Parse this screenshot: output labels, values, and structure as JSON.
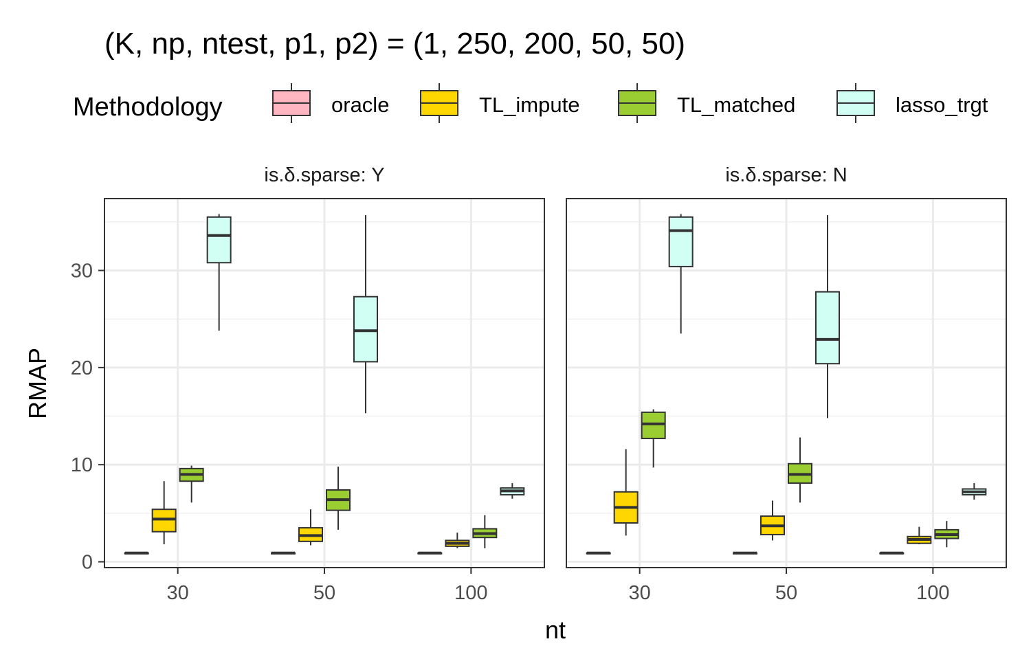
{
  "chart_data": {
    "type": "boxplot",
    "title": "(K, np, ntest, p1, p2) = (1, 250, 200, 50, 50)",
    "xlabel": "nt",
    "ylabel": "RMAP",
    "ylim": [
      -0.6,
      37.4
    ],
    "y_ticks": [
      0,
      10,
      20,
      30
    ],
    "categories": [
      "30",
      "50",
      "100"
    ],
    "legend": {
      "title": "Methodology",
      "position": "top",
      "entries": [
        {
          "name": "oracle",
          "color": "#FFB6C1"
        },
        {
          "name": "TL_impute",
          "color": "#FFD700"
        },
        {
          "name": "TL_matched",
          "color": "#9ACD32"
        },
        {
          "name": "lasso_trgt",
          "color": "#D2FFF4"
        }
      ]
    },
    "grid": true,
    "panels": [
      {
        "label": "is.δ.sparse: Y",
        "groups": [
          {
            "nt": "30",
            "boxes": [
              {
                "method": "oracle",
                "whisker_low": 0.9,
                "q1": 0.9,
                "median": 0.9,
                "q3": 0.9,
                "whisker_high": 0.9
              },
              {
                "method": "TL_impute",
                "whisker_low": 1.8,
                "q1": 3.1,
                "median": 4.4,
                "q3": 5.4,
                "whisker_high": 8.3
              },
              {
                "method": "TL_matched",
                "whisker_low": 6.1,
                "q1": 8.3,
                "median": 9.0,
                "q3": 9.6,
                "whisker_high": 9.9
              },
              {
                "method": "lasso_trgt",
                "whisker_low": 23.8,
                "q1": 30.8,
                "median": 33.6,
                "q3": 35.5,
                "whisker_high": 35.8
              }
            ]
          },
          {
            "nt": "50",
            "boxes": [
              {
                "method": "oracle",
                "whisker_low": 0.9,
                "q1": 0.9,
                "median": 0.9,
                "q3": 0.9,
                "whisker_high": 0.9
              },
              {
                "method": "TL_impute",
                "whisker_low": 1.7,
                "q1": 2.1,
                "median": 2.7,
                "q3": 3.5,
                "whisker_high": 5.4
              },
              {
                "method": "TL_matched",
                "whisker_low": 3.3,
                "q1": 5.3,
                "median": 6.4,
                "q3": 7.4,
                "whisker_high": 9.8
              },
              {
                "method": "lasso_trgt",
                "whisker_low": 15.3,
                "q1": 20.6,
                "median": 23.8,
                "q3": 27.3,
                "whisker_high": 35.7
              }
            ]
          },
          {
            "nt": "100",
            "boxes": [
              {
                "method": "oracle",
                "whisker_low": 0.9,
                "q1": 0.9,
                "median": 0.9,
                "q3": 0.9,
                "whisker_high": 0.9
              },
              {
                "method": "TL_impute",
                "whisker_low": 1.4,
                "q1": 1.6,
                "median": 1.9,
                "q3": 2.2,
                "whisker_high": 3.0
              },
              {
                "method": "TL_matched",
                "whisker_low": 1.4,
                "q1": 2.5,
                "median": 2.9,
                "q3": 3.4,
                "whisker_high": 4.8
              },
              {
                "method": "lasso_trgt",
                "whisker_low": 6.5,
                "q1": 6.9,
                "median": 7.3,
                "q3": 7.6,
                "whisker_high": 8.1
              }
            ]
          }
        ]
      },
      {
        "label": "is.δ.sparse: N",
        "groups": [
          {
            "nt": "30",
            "boxes": [
              {
                "method": "oracle",
                "whisker_low": 0.9,
                "q1": 0.9,
                "median": 0.9,
                "q3": 0.9,
                "whisker_high": 0.9
              },
              {
                "method": "TL_impute",
                "whisker_low": 2.7,
                "q1": 4.0,
                "median": 5.6,
                "q3": 7.2,
                "whisker_high": 11.6
              },
              {
                "method": "TL_matched",
                "whisker_low": 9.7,
                "q1": 12.7,
                "median": 14.2,
                "q3": 15.4,
                "whisker_high": 15.7
              },
              {
                "method": "lasso_trgt",
                "whisker_low": 23.5,
                "q1": 30.4,
                "median": 34.1,
                "q3": 35.5,
                "whisker_high": 35.8
              }
            ]
          },
          {
            "nt": "50",
            "boxes": [
              {
                "method": "oracle",
                "whisker_low": 0.9,
                "q1": 0.9,
                "median": 0.9,
                "q3": 0.9,
                "whisker_high": 0.9
              },
              {
                "method": "TL_impute",
                "whisker_low": 2.2,
                "q1": 2.8,
                "median": 3.7,
                "q3": 4.7,
                "whisker_high": 6.3
              },
              {
                "method": "TL_matched",
                "whisker_low": 6.1,
                "q1": 8.1,
                "median": 9.0,
                "q3": 10.1,
                "whisker_high": 12.8
              },
              {
                "method": "lasso_trgt",
                "whisker_low": 14.8,
                "q1": 20.4,
                "median": 22.9,
                "q3": 27.8,
                "whisker_high": 35.7
              }
            ]
          },
          {
            "nt": "100",
            "boxes": [
              {
                "method": "oracle",
                "whisker_low": 0.9,
                "q1": 0.9,
                "median": 0.9,
                "q3": 0.9,
                "whisker_high": 0.9
              },
              {
                "method": "TL_impute",
                "whisker_low": 1.8,
                "q1": 1.9,
                "median": 2.3,
                "q3": 2.6,
                "whisker_high": 3.6
              },
              {
                "method": "TL_matched",
                "whisker_low": 1.5,
                "q1": 2.4,
                "median": 2.8,
                "q3": 3.3,
                "whisker_high": 4.2
              },
              {
                "method": "lasso_trgt",
                "whisker_low": 6.4,
                "q1": 6.9,
                "median": 7.2,
                "q3": 7.5,
                "whisker_high": 8.1
              }
            ]
          }
        ]
      }
    ]
  }
}
